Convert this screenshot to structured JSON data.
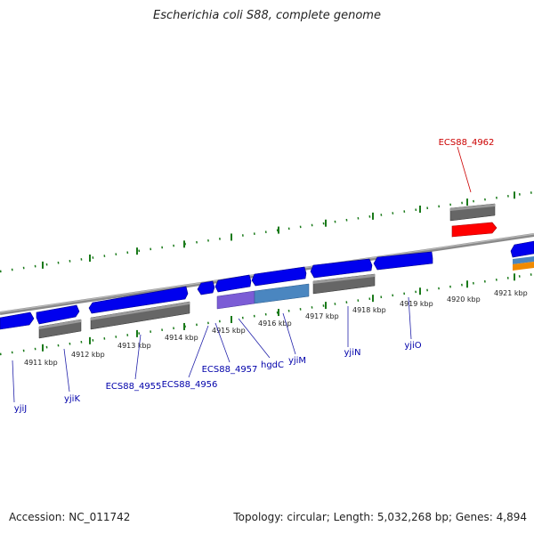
{
  "title": "Escherichia coli S88, complete genome",
  "footer": {
    "accession": "Accession: NC_011742",
    "summary": "Topology: circular; Length: 5,032,268 bp; Genes: 4,894"
  },
  "colors": {
    "backbone": "#888888",
    "tick": "#1a7a1a",
    "gene_forward": "#0000ee",
    "gene_pseudo": "#666666",
    "gene_highlight": "#ff0000",
    "rna_purple": "#7b5cd6",
    "rna_steel": "#4a86c0",
    "label_blue": "#0000aa",
    "label_red": "#cc0000"
  },
  "scale_labels": [
    {
      "kbp": 4911,
      "text": "4911 kbp"
    },
    {
      "kbp": 4912,
      "text": "4912 kbp"
    },
    {
      "kbp": 4913,
      "text": "4913 kbp"
    },
    {
      "kbp": 4914,
      "text": "4914 kbp"
    },
    {
      "kbp": 4915,
      "text": "4915 kbp"
    },
    {
      "kbp": 4916,
      "text": "4916 kbp"
    },
    {
      "kbp": 4917,
      "text": "4917 kbp"
    },
    {
      "kbp": 4918,
      "text": "4918 kbp"
    },
    {
      "kbp": 4919,
      "text": "4919 kbp"
    },
    {
      "kbp": 4920,
      "text": "4920 kbp"
    },
    {
      "kbp": 4921,
      "text": "4921 kbp"
    }
  ],
  "gene_labels": [
    {
      "text": "yjiJ",
      "color": "label_blue"
    },
    {
      "text": "yjiK",
      "color": "label_blue"
    },
    {
      "text": "ECS88_4955",
      "color": "label_blue"
    },
    {
      "text": "ECS88_4956",
      "color": "label_blue"
    },
    {
      "text": "ECS88_4957",
      "color": "label_blue"
    },
    {
      "text": "hgdC",
      "color": "label_blue"
    },
    {
      "text": "yjiM",
      "color": "label_blue"
    },
    {
      "text": "yjiN",
      "color": "label_blue"
    },
    {
      "text": "yjiO",
      "color": "label_blue"
    },
    {
      "text": "ECS88_4962",
      "color": "label_red"
    }
  ]
}
